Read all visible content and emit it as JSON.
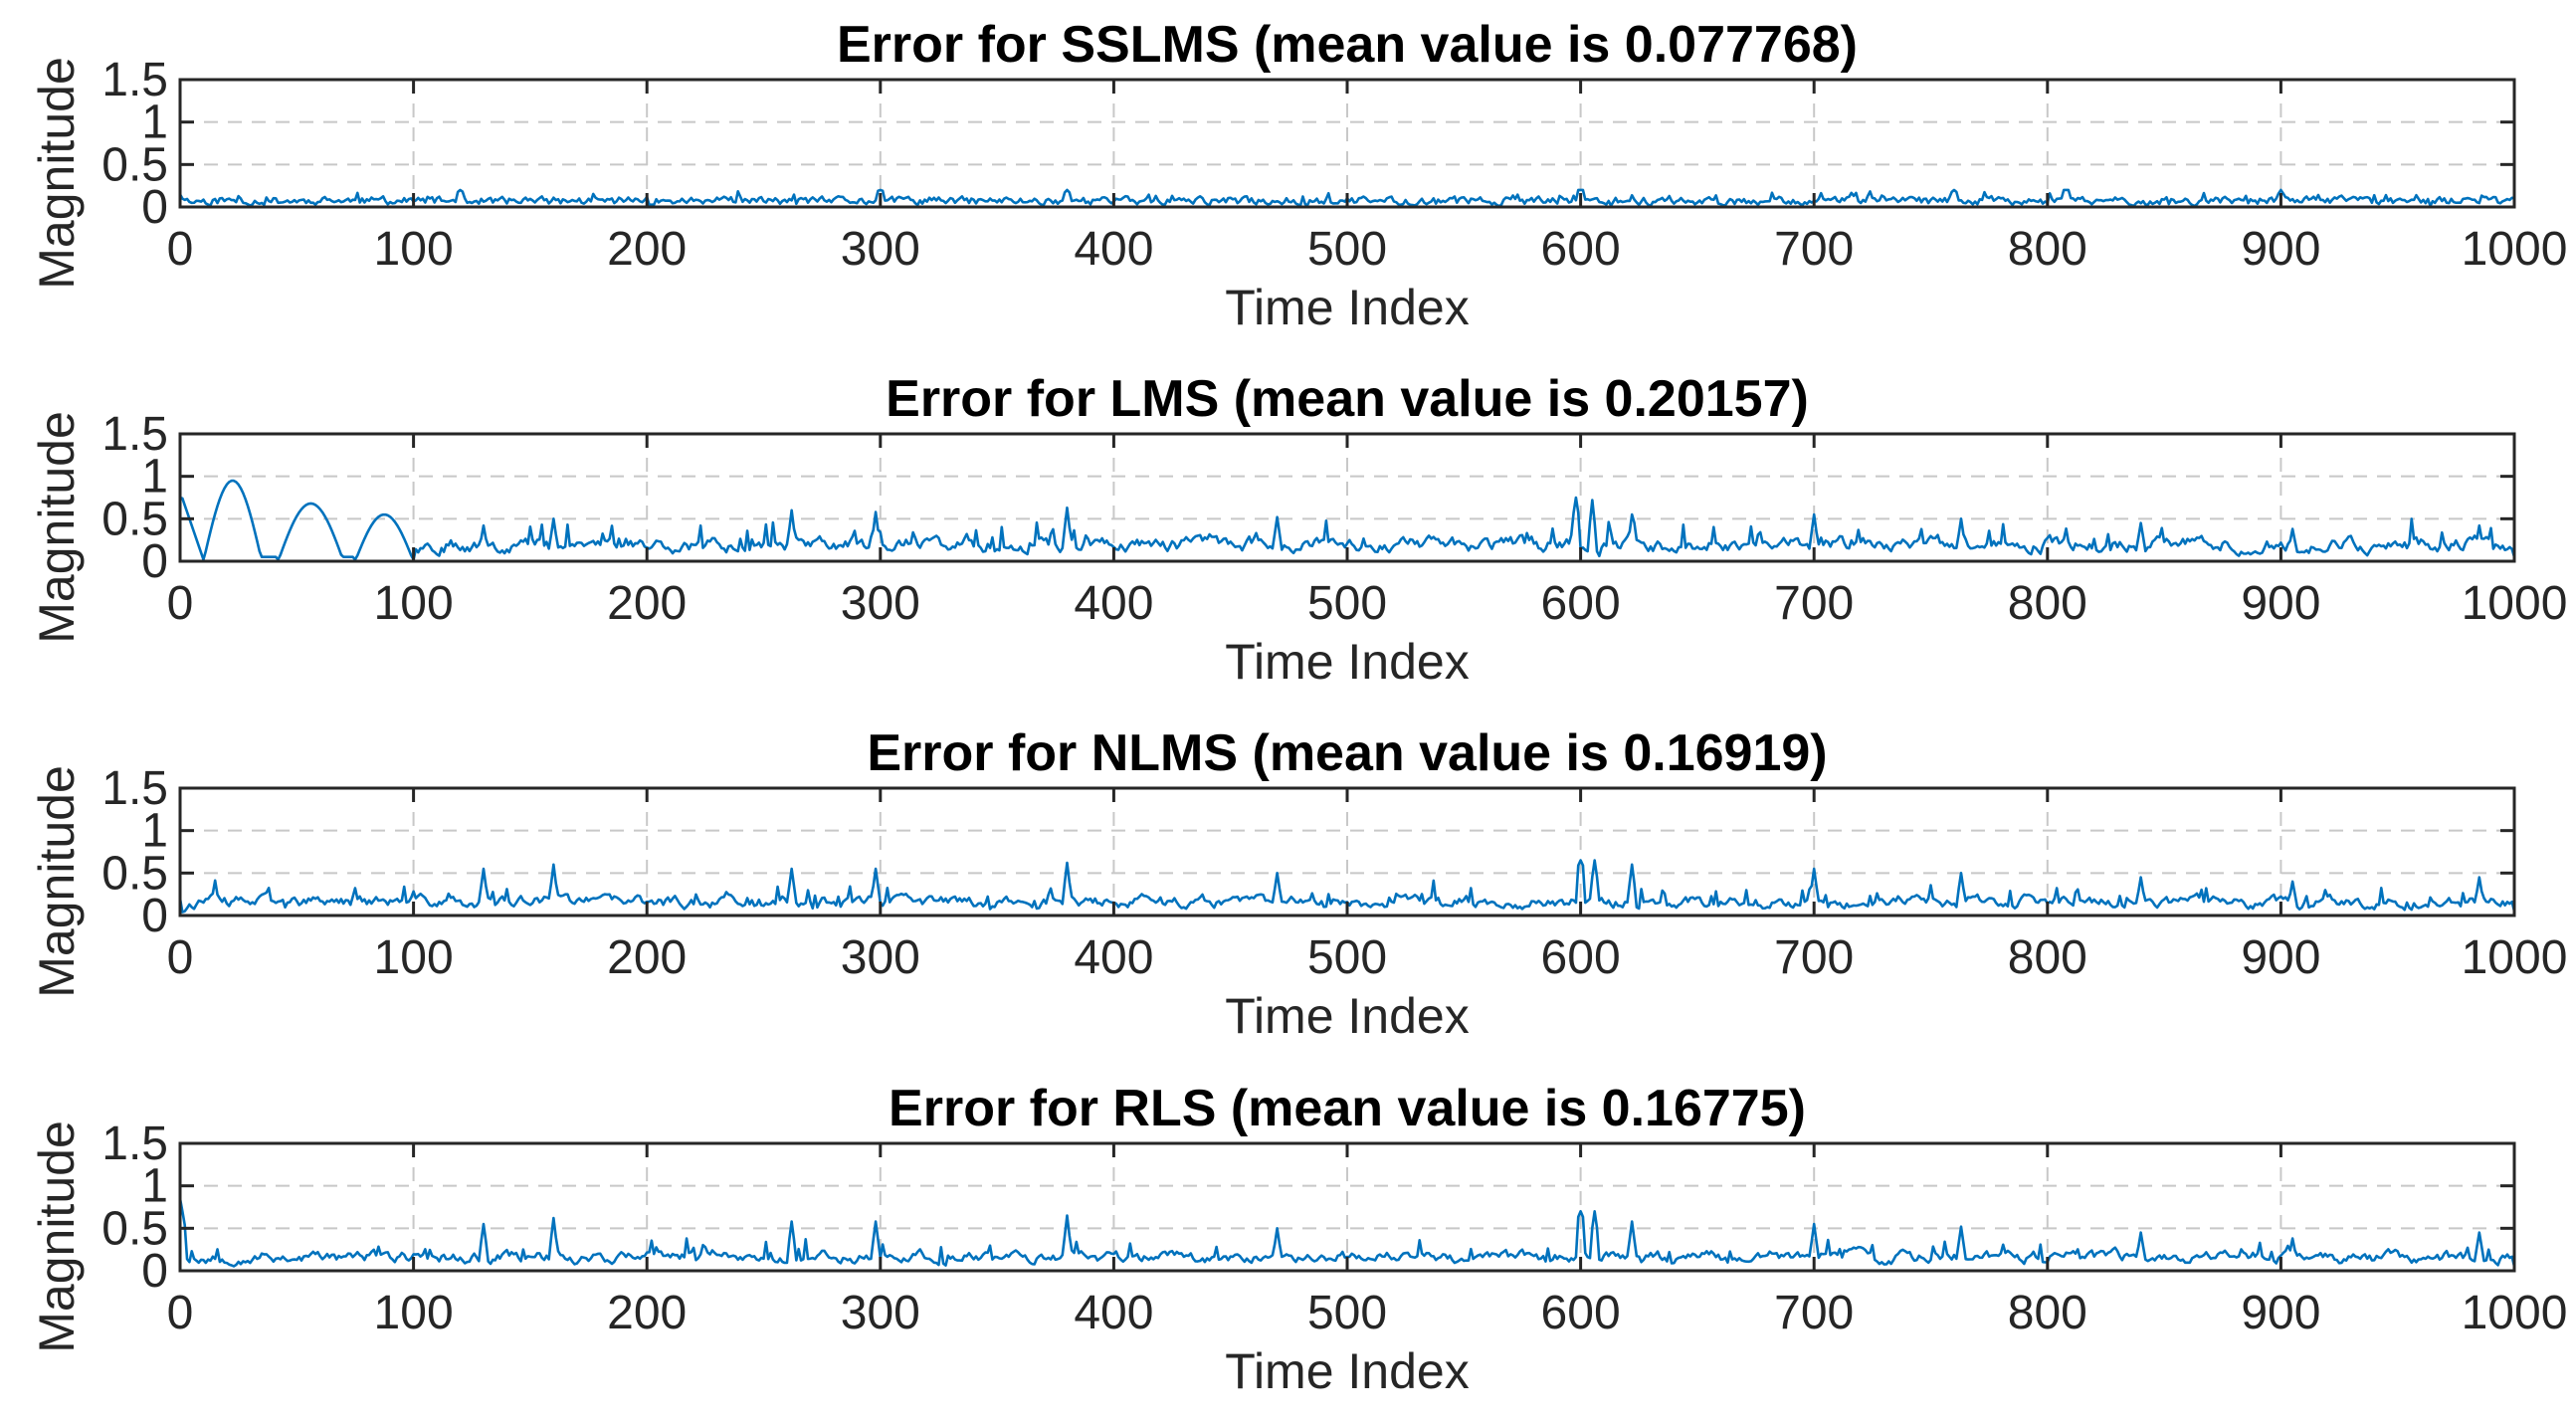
{
  "chart_data": [
    {
      "type": "line",
      "title": "Error for SSLMS (mean value is 0.077768)",
      "xlabel": "Time Index",
      "ylabel": "Magnitude",
      "xlim": [
        0,
        1000
      ],
      "ylim": [
        0,
        1.5
      ],
      "xticks": [
        "0",
        "100",
        "200",
        "300",
        "400",
        "500",
        "600",
        "700",
        "800",
        "900",
        "1000"
      ],
      "yticks": [
        "0",
        "0.5",
        "1",
        "1.5"
      ],
      "grid": true,
      "legend": "none",
      "color": "#0072BD",
      "mean": 0.077768,
      "noise": {
        "seed": 11,
        "smooth": 0.45,
        "scale": 0.12
      },
      "peaks": [
        [
          120,
          0.28
        ],
        [
          300,
          0.3
        ],
        [
          380,
          0.27
        ],
        [
          600,
          0.35
        ],
        [
          760,
          0.28
        ],
        [
          808,
          0.34
        ],
        [
          900,
          0.25
        ]
      ],
      "envelope": [
        [
          0,
          0.2
        ],
        [
          1000,
          0.2
        ]
      ],
      "endpoints": [
        [
          0,
          0.15
        ],
        [
          1000,
          0.1
        ]
      ]
    },
    {
      "type": "line",
      "title": "Error for LMS (mean value is 0.20157)",
      "xlabel": "Time Index",
      "ylabel": "Magnitude",
      "xlim": [
        0,
        1000
      ],
      "ylim": [
        0,
        1.5
      ],
      "xticks": [
        "0",
        "100",
        "200",
        "300",
        "400",
        "500",
        "600",
        "700",
        "800",
        "900",
        "1000"
      ],
      "yticks": [
        "0",
        "0.5",
        "1",
        "1.5"
      ],
      "grid": true,
      "legend": "none",
      "color": "#0072BD",
      "mean": 0.20157,
      "noise": {
        "seed": 23,
        "smooth": 0.7,
        "scale": 0.32
      },
      "peaks": [
        [
          130,
          0.42
        ],
        [
          160,
          0.5
        ],
        [
          262,
          0.6
        ],
        [
          298,
          0.58
        ],
        [
          380,
          0.63
        ],
        [
          470,
          0.52
        ],
        [
          598,
          0.9
        ],
        [
          605,
          0.72
        ],
        [
          622,
          0.55
        ],
        [
          700,
          0.55
        ],
        [
          763,
          0.5
        ],
        [
          840,
          0.45
        ],
        [
          905,
          0.38
        ],
        [
          985,
          0.42
        ]
      ],
      "envelope": [
        [
          0,
          1.0
        ],
        [
          80,
          1.0
        ],
        [
          100,
          0.8
        ],
        [
          300,
          0.75
        ],
        [
          1000,
          0.75
        ]
      ],
      "endpoints": [
        [
          0,
          0.75
        ],
        [
          1000,
          0.05
        ]
      ],
      "segments": [
        [
          0,
          10,
          "1-cos",
          0.8,
          0
        ],
        [
          10,
          35,
          "bump",
          0.95,
          25
        ],
        [
          35,
          42,
          "linear",
          0.05,
          0.05
        ],
        [
          42,
          70,
          "bump",
          0.68,
          55
        ],
        [
          70,
          75,
          "linear",
          0.05,
          0.05
        ],
        [
          75,
          100,
          "bump",
          0.55,
          82
        ]
      ]
    },
    {
      "type": "line",
      "title": "Error for NLMS (mean value is 0.16919)",
      "xlabel": "Time Index",
      "ylabel": "Magnitude",
      "xlim": [
        0,
        1000
      ],
      "ylim": [
        0,
        1.5
      ],
      "xticks": [
        "0",
        "100",
        "200",
        "300",
        "400",
        "500",
        "600",
        "700",
        "800",
        "900",
        "1000"
      ],
      "yticks": [
        "0",
        "0.5",
        "1",
        "1.5"
      ],
      "grid": true,
      "legend": "none",
      "color": "#0072BD",
      "mean": 0.16919,
      "noise": {
        "seed": 37,
        "smooth": 0.7,
        "scale": 0.28
      },
      "peaks": [
        [
          130,
          0.55
        ],
        [
          160,
          0.6
        ],
        [
          262,
          0.55
        ],
        [
          298,
          0.55
        ],
        [
          380,
          0.62
        ],
        [
          470,
          0.5
        ],
        [
          600,
          0.93
        ],
        [
          606,
          0.72
        ],
        [
          622,
          0.6
        ],
        [
          700,
          0.55
        ],
        [
          763,
          0.5
        ],
        [
          840,
          0.45
        ],
        [
          905,
          0.4
        ],
        [
          985,
          0.45
        ]
      ],
      "envelope": [
        [
          0,
          0.65
        ],
        [
          1000,
          0.65
        ]
      ],
      "endpoints": [
        [
          0,
          0.2
        ],
        [
          1000,
          0.05
        ]
      ]
    },
    {
      "type": "line",
      "title": "Error for RLS (mean value is 0.16775)",
      "xlabel": "Time Index",
      "ylabel": "Magnitude",
      "xlim": [
        0,
        1000
      ],
      "ylim": [
        0,
        1.5
      ],
      "xticks": [
        "0",
        "100",
        "200",
        "300",
        "400",
        "500",
        "600",
        "700",
        "800",
        "900",
        "1000"
      ],
      "yticks": [
        "0",
        "0.5",
        "1",
        "1.5"
      ],
      "grid": true,
      "legend": "none",
      "color": "#0072BD",
      "mean": 0.16775,
      "noise": {
        "seed": 53,
        "smooth": 0.7,
        "scale": 0.28
      },
      "peaks": [
        [
          1,
          0.85
        ],
        [
          130,
          0.55
        ],
        [
          160,
          0.62
        ],
        [
          262,
          0.58
        ],
        [
          298,
          0.58
        ],
        [
          380,
          0.65
        ],
        [
          470,
          0.5
        ],
        [
          600,
          1.0
        ],
        [
          606,
          0.8
        ],
        [
          622,
          0.58
        ],
        [
          700,
          0.55
        ],
        [
          763,
          0.52
        ],
        [
          840,
          0.45
        ],
        [
          905,
          0.38
        ],
        [
          985,
          0.45
        ]
      ],
      "envelope": [
        [
          0,
          0.7
        ],
        [
          1000,
          0.7
        ]
      ],
      "endpoints": [
        [
          0,
          0.85
        ],
        [
          1000,
          0.05
        ]
      ]
    }
  ]
}
